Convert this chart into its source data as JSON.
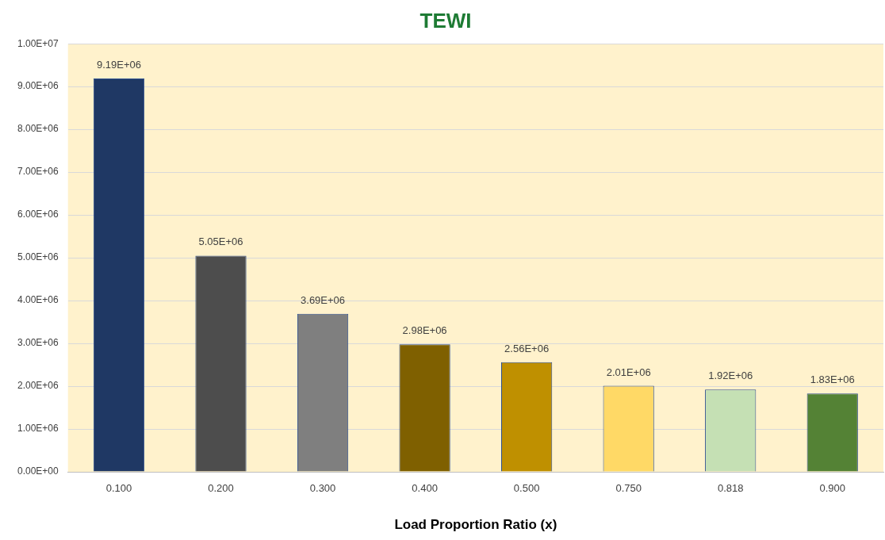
{
  "chart_data": {
    "type": "bar",
    "title": "TEWI",
    "xlabel": "Load Proportion Ratio (x)",
    "categories": [
      "0.100",
      "0.200",
      "0.300",
      "0.400",
      "0.500",
      "0.750",
      "0.818",
      "0.900"
    ],
    "values": [
      9190000,
      5050000,
      3690000,
      2980000,
      2560000,
      2010000,
      1920000,
      1830000
    ],
    "value_labels": [
      "9.19E+06",
      "5.05E+06",
      "3.69E+06",
      "2.98E+06",
      "2.56E+06",
      "2.01E+06",
      "1.92E+06",
      "1.83E+06"
    ],
    "colors": [
      "#1f3864",
      "#4d4d4d",
      "#7f7f7f",
      "#7f6000",
      "#bf9000",
      "#ffd966",
      "#c5e0b4",
      "#548235"
    ],
    "ylim": [
      0,
      10000000
    ],
    "yticks": [
      {
        "value": 0,
        "label": "0.00E+00"
      },
      {
        "value": 1000000,
        "label": "1.00E+06"
      },
      {
        "value": 2000000,
        "label": "2.00E+06"
      },
      {
        "value": 3000000,
        "label": "3.00E+06"
      },
      {
        "value": 4000000,
        "label": "4.00E+06"
      },
      {
        "value": 5000000,
        "label": "5.00E+06"
      },
      {
        "value": 6000000,
        "label": "6.00E+06"
      },
      {
        "value": 7000000,
        "label": "7.00E+06"
      },
      {
        "value": 8000000,
        "label": "8.00E+06"
      },
      {
        "value": 9000000,
        "label": "9.00E+06"
      },
      {
        "value": 10000000,
        "label": "1.00E+07"
      }
    ],
    "grid": "y",
    "legend": false
  }
}
